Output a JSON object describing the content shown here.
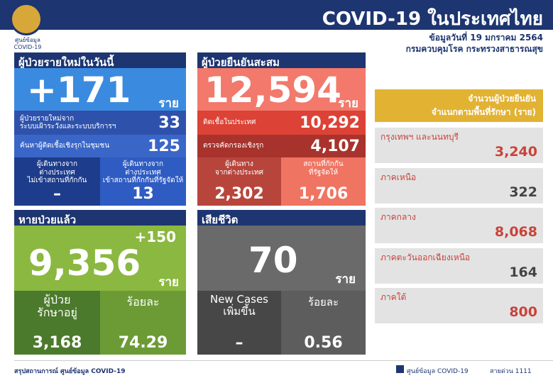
{
  "header": {
    "logo_text": [
      "ศูนย์ข้อมูล",
      "COVID-19"
    ],
    "title": "COVID-19 ในประเทศไทย",
    "date": "ข้อมูลวันที่ 19 มกราคม 2564",
    "source": "กรมควบคุมโรค กระทรวงสาธารณสุข"
  },
  "new_cases": {
    "heading": "ผู้ป่วยรายใหม่ในวันนี้",
    "total": "+171",
    "unit": "ราย",
    "rows": [
      {
        "label": [
          "ผู้ป่วยรายใหม่จาก",
          "ระบบเฝ้าระวังและระบบบริการฯ"
        ],
        "value": "33"
      },
      {
        "label": [
          "ค้นหาผู้ติดเชื้อเชิงรุกในชุมชน"
        ],
        "value": "125"
      }
    ],
    "cells": [
      {
        "label": [
          "ผู้เดินทางจาก",
          "ต่างประเทศ",
          "ไม่เข้าสถานที่กักกัน"
        ],
        "value": "–"
      },
      {
        "label": [
          "ผู้เดินทางจาก",
          "ต่างประเทศ",
          "เข้าสถานที่กักกันที่รัฐจัดให้"
        ],
        "value": "13"
      }
    ]
  },
  "cumulative": {
    "heading": "ผู้ป่วยยืนยันสะสม",
    "total": "12,594",
    "unit": "ราย",
    "rows": [
      {
        "label": [
          "ติดเชื้อในประเทศ"
        ],
        "value": "10,292"
      },
      {
        "label": [
          "ตรวจคัดกรองเชิงรุก"
        ],
        "value": "4,107"
      }
    ],
    "cells": [
      {
        "label": [
          "ผู้เดินทาง",
          "จากต่างประเทศ"
        ],
        "value": "2,302"
      },
      {
        "label": [
          "สถานที่กักกัน",
          "ที่รัฐจัดให้"
        ],
        "value": "1,706"
      }
    ]
  },
  "recovered": {
    "heading": "หายป่วยแล้ว",
    "change": "+150",
    "total": "9,356",
    "unit": "ราย",
    "cells": [
      {
        "label": [
          "ผู้ป่วย",
          "รักษาอยู่"
        ],
        "value": "3,168"
      },
      {
        "label": [
          "ร้อยละ"
        ],
        "value": "74.29"
      }
    ]
  },
  "deaths": {
    "heading": "เสียชีวิต",
    "total": "70",
    "unit": "ราย",
    "cells": [
      {
        "label": [
          "New Cases",
          "เพิ่มขึ้น"
        ],
        "value": "–"
      },
      {
        "label": [
          "ร้อยละ"
        ],
        "value": "0.56"
      }
    ]
  },
  "regions": {
    "heading": [
      "จำนวนผู้ป่วยยืนยัน",
      "จำแนกตามพื้นที่รักษา (ราย)"
    ],
    "items": [
      {
        "label": "กรุงเทพฯ และนนทบุรี",
        "value": "3,240"
      },
      {
        "label": "ภาคเหนือ",
        "value": "322"
      },
      {
        "label": "ภาคกลาง",
        "value": "8,068"
      },
      {
        "label": "ภาคตะวันออกเฉียงเหนือ",
        "value": "164"
      },
      {
        "label": "ภาคใต้",
        "value": "800"
      }
    ]
  },
  "footer": {
    "left": "สรุปสถานการณ์ ศูนย์ข้อมูล COVID-19",
    "facebook": "ศูนย์ข้อมูล COVID-19",
    "hotline": "สายด่วน 1111"
  }
}
